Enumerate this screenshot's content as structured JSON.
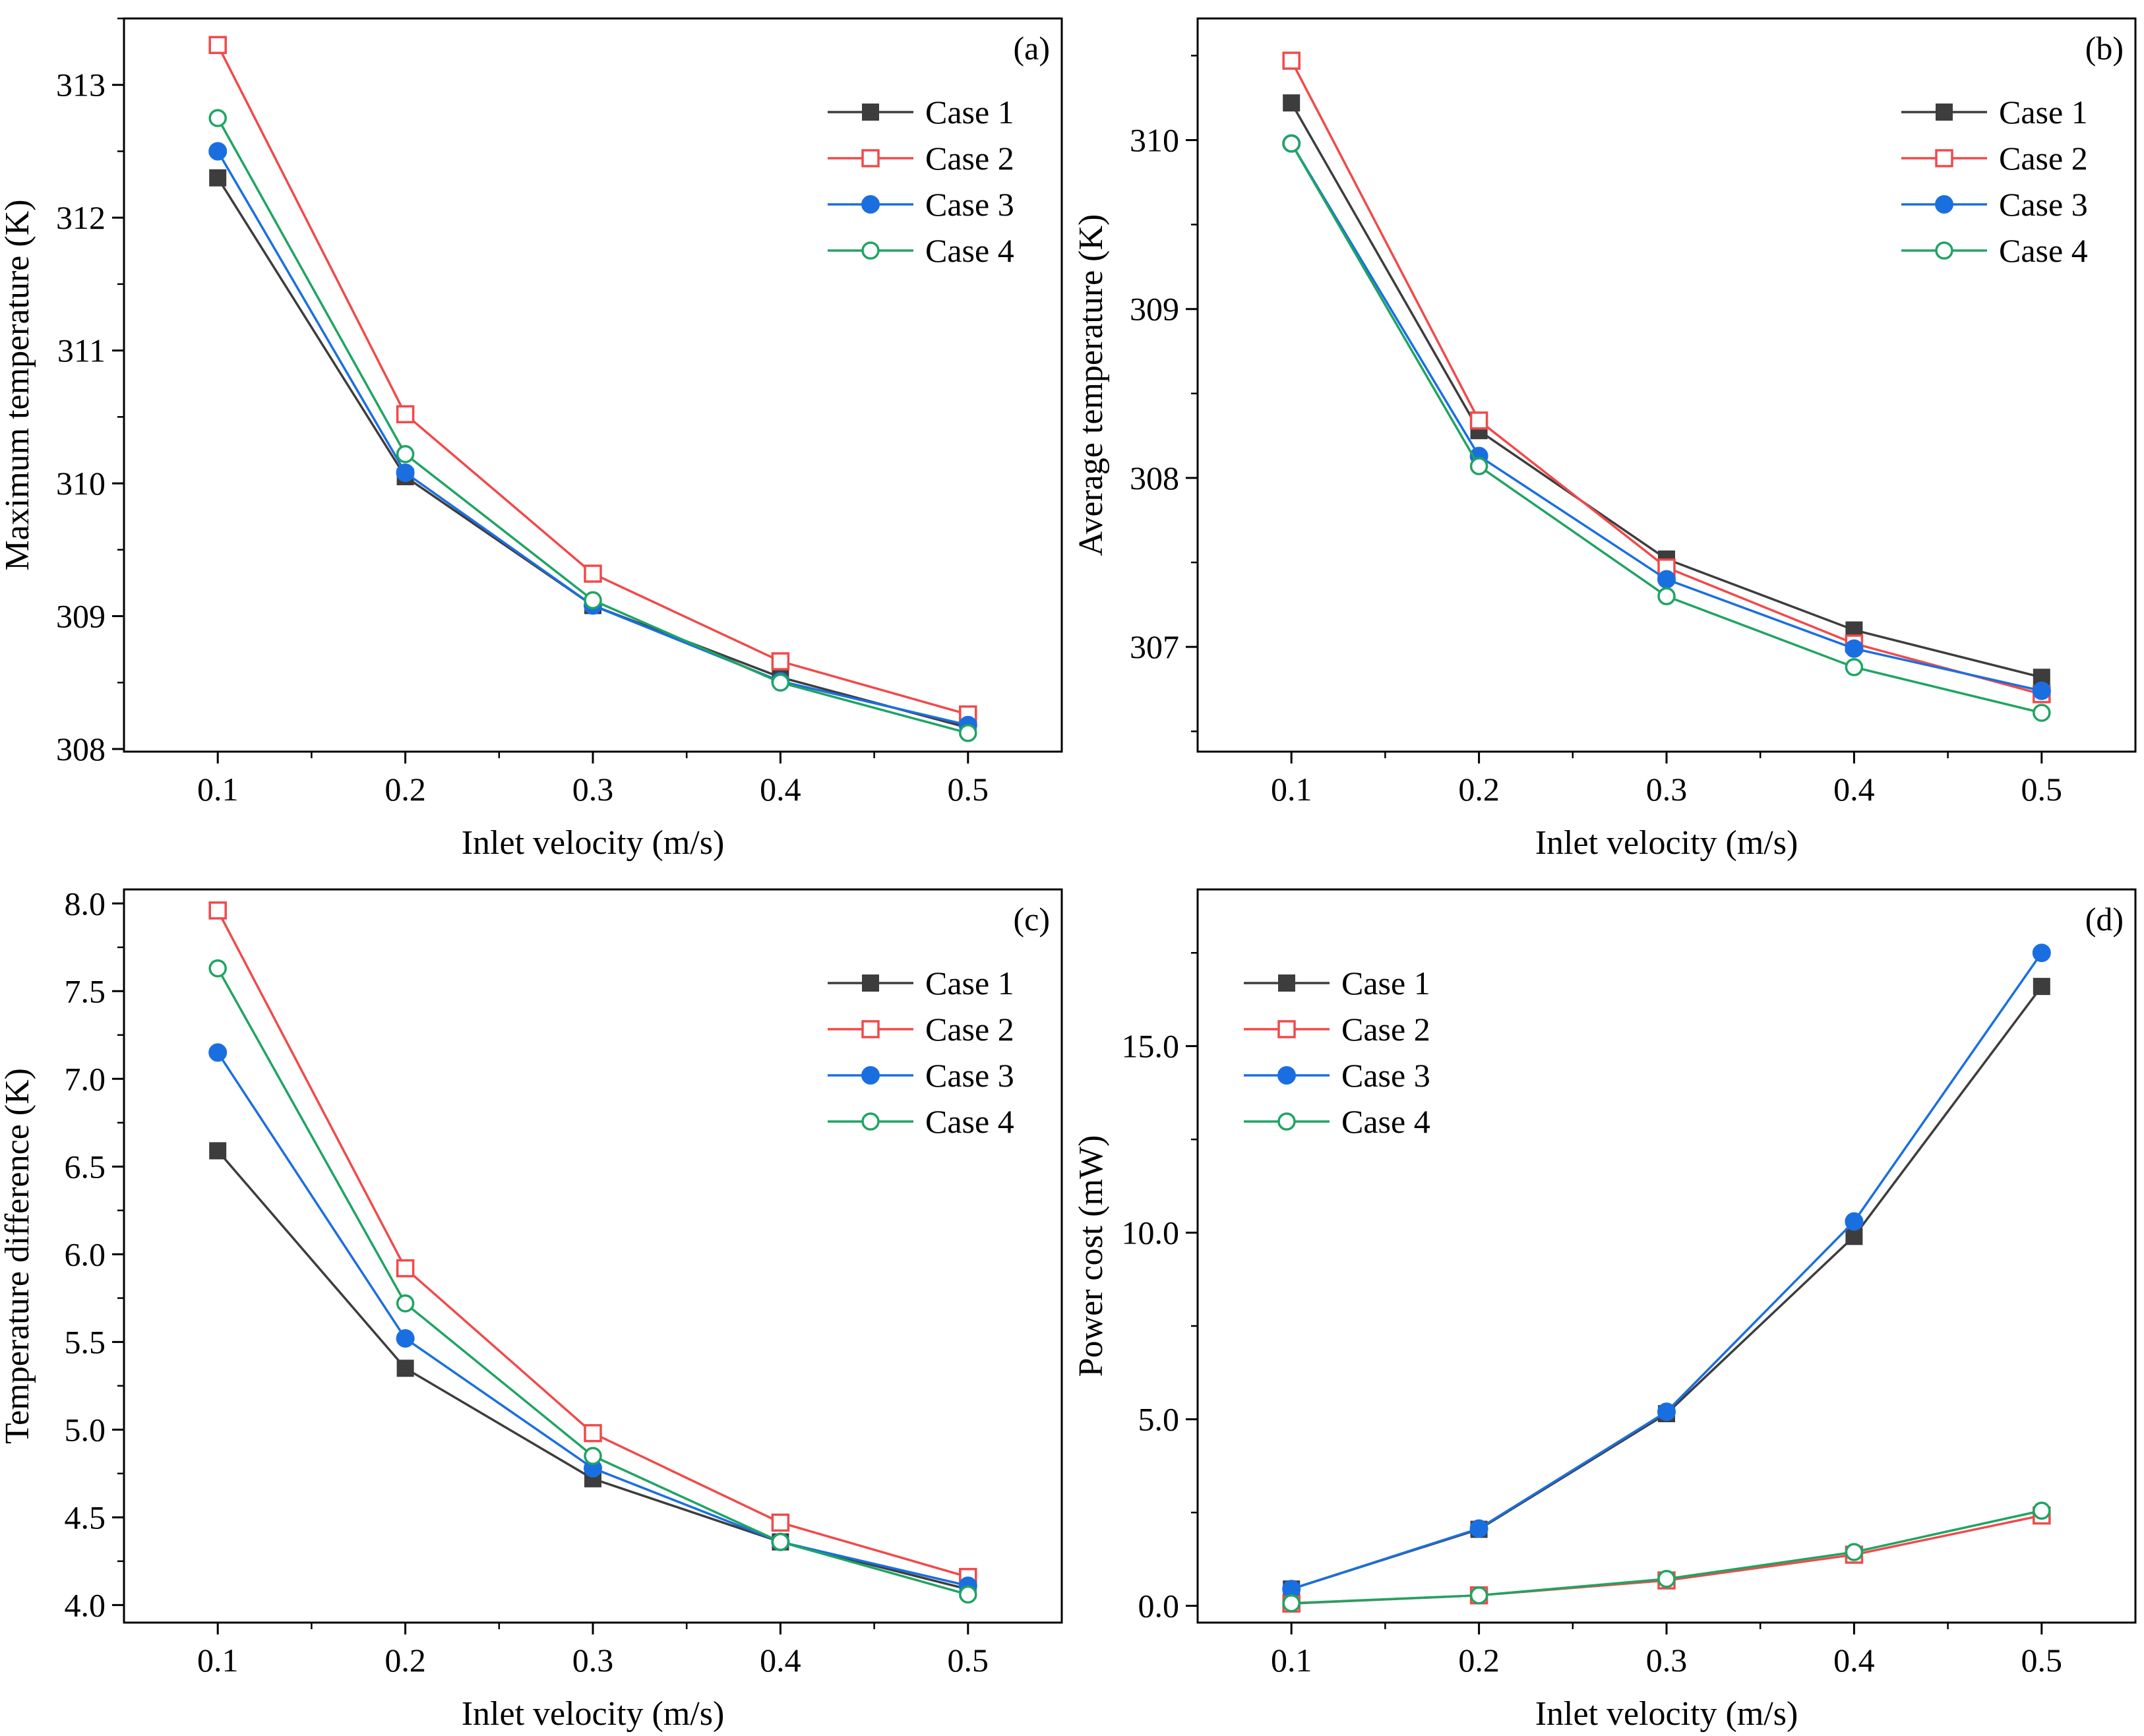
{
  "figure": {
    "colors": {
      "case1": "#3d3d3d",
      "case2": "#f04a4a",
      "case3": "#1a6fe0",
      "case4": "#1fa463"
    }
  },
  "chart_data": [
    {
      "type": "line",
      "panel_label": "(a)",
      "xlabel": "Inlet velocity (m/s)",
      "ylabel": "Maximum temperature (K)",
      "x": [
        0.1,
        0.2,
        0.3,
        0.4,
        0.5
      ],
      "x_tick_labels": [
        "0.1",
        "0.2",
        "0.3",
        "0.4",
        "0.5"
      ],
      "xlim": [
        0.05,
        0.55
      ],
      "ylim": [
        307.98,
        313.5
      ],
      "y_ticks": [
        308,
        309,
        310,
        311,
        312,
        313
      ],
      "y_tick_labels": [
        "308",
        "309",
        "310",
        "311",
        "312",
        "313"
      ],
      "y_minor_step": 0.5,
      "legend_position": "top-right",
      "series": [
        {
          "name": "Case 1",
          "marker": "filled-square",
          "values": [
            312.3,
            310.05,
            309.08,
            308.54,
            308.16
          ]
        },
        {
          "name": "Case 2",
          "marker": "open-square",
          "values": [
            313.3,
            310.52,
            309.32,
            308.66,
            308.26
          ]
        },
        {
          "name": "Case 3",
          "marker": "filled-circle",
          "values": [
            312.5,
            310.08,
            309.08,
            308.51,
            308.18
          ]
        },
        {
          "name": "Case 4",
          "marker": "open-circle",
          "values": [
            312.75,
            310.22,
            309.12,
            308.5,
            308.12
          ]
        }
      ]
    },
    {
      "type": "line",
      "panel_label": "(b)",
      "xlabel": "Inlet velocity (m/s)",
      "ylabel": "Average temperature (K)",
      "x": [
        0.1,
        0.2,
        0.3,
        0.4,
        0.5
      ],
      "x_tick_labels": [
        "0.1",
        "0.2",
        "0.3",
        "0.4",
        "0.5"
      ],
      "xlim": [
        0.05,
        0.55
      ],
      "ylim": [
        306.38,
        310.72
      ],
      "y_ticks": [
        307,
        308,
        309,
        310
      ],
      "y_tick_labels": [
        "307",
        "308",
        "309",
        "310"
      ],
      "y_minor_step": 0.5,
      "legend_position": "top-right",
      "series": [
        {
          "name": "Case 1",
          "marker": "filled-square",
          "values": [
            310.22,
            308.28,
            307.52,
            307.1,
            306.82
          ]
        },
        {
          "name": "Case 2",
          "marker": "open-square",
          "values": [
            310.47,
            308.34,
            307.47,
            307.02,
            306.72
          ]
        },
        {
          "name": "Case 3",
          "marker": "filled-circle",
          "values": [
            309.98,
            308.13,
            307.4,
            306.99,
            306.74
          ]
        },
        {
          "name": "Case 4",
          "marker": "open-circle",
          "values": [
            309.98,
            308.07,
            307.3,
            306.88,
            306.61
          ]
        }
      ]
    },
    {
      "type": "line",
      "panel_label": "(c)",
      "xlabel": "Inlet velocity (m/s)",
      "ylabel": "Temperature difference (K)",
      "x": [
        0.1,
        0.2,
        0.3,
        0.4,
        0.5
      ],
      "x_tick_labels": [
        "0.1",
        "0.2",
        "0.3",
        "0.4",
        "0.5"
      ],
      "xlim": [
        0.05,
        0.55
      ],
      "ylim": [
        3.9,
        8.08
      ],
      "y_ticks": [
        4.0,
        4.5,
        5.0,
        5.5,
        6.0,
        6.5,
        7.0,
        7.5,
        8.0
      ],
      "y_tick_labels": [
        "4.0",
        "4.5",
        "5.0",
        "5.5",
        "6.0",
        "6.5",
        "7.0",
        "7.5",
        "8.0"
      ],
      "y_minor_step": 0.25,
      "legend_position": "top-right",
      "series": [
        {
          "name": "Case 1",
          "marker": "filled-square",
          "values": [
            6.59,
            5.35,
            4.72,
            4.36,
            4.09
          ]
        },
        {
          "name": "Case 2",
          "marker": "open-square",
          "values": [
            7.96,
            5.92,
            4.98,
            4.47,
            4.16
          ]
        },
        {
          "name": "Case 3",
          "marker": "filled-circle",
          "values": [
            7.15,
            5.52,
            4.78,
            4.36,
            4.11
          ]
        },
        {
          "name": "Case 4",
          "marker": "open-circle",
          "values": [
            7.63,
            5.72,
            4.85,
            4.36,
            4.06
          ]
        }
      ]
    },
    {
      "type": "line",
      "panel_label": "(d)",
      "xlabel": "Inlet velocity (m/s)",
      "ylabel": "Power cost (mW)",
      "x": [
        0.1,
        0.2,
        0.3,
        0.4,
        0.5
      ],
      "x_tick_labels": [
        "0.1",
        "0.2",
        "0.3",
        "0.4",
        "0.5"
      ],
      "xlim": [
        0.05,
        0.55
      ],
      "ylim": [
        -0.45,
        19.2
      ],
      "y_ticks": [
        0,
        5,
        10,
        15
      ],
      "y_tick_labels": [
        "0.0",
        "5.0",
        "10.0",
        "15.0"
      ],
      "y_minor_step": 2.5,
      "legend_position": "top-left",
      "series": [
        {
          "name": "Case 1",
          "marker": "filled-square",
          "values": [
            0.45,
            2.05,
            5.15,
            9.9,
            16.6
          ]
        },
        {
          "name": "Case 2",
          "marker": "open-square",
          "values": [
            0.06,
            0.28,
            0.68,
            1.37,
            2.42
          ]
        },
        {
          "name": "Case 3",
          "marker": "filled-circle",
          "values": [
            0.45,
            2.07,
            5.2,
            10.3,
            17.5
          ]
        },
        {
          "name": "Case 4",
          "marker": "open-circle",
          "values": [
            0.07,
            0.28,
            0.72,
            1.44,
            2.55
          ]
        }
      ]
    }
  ]
}
